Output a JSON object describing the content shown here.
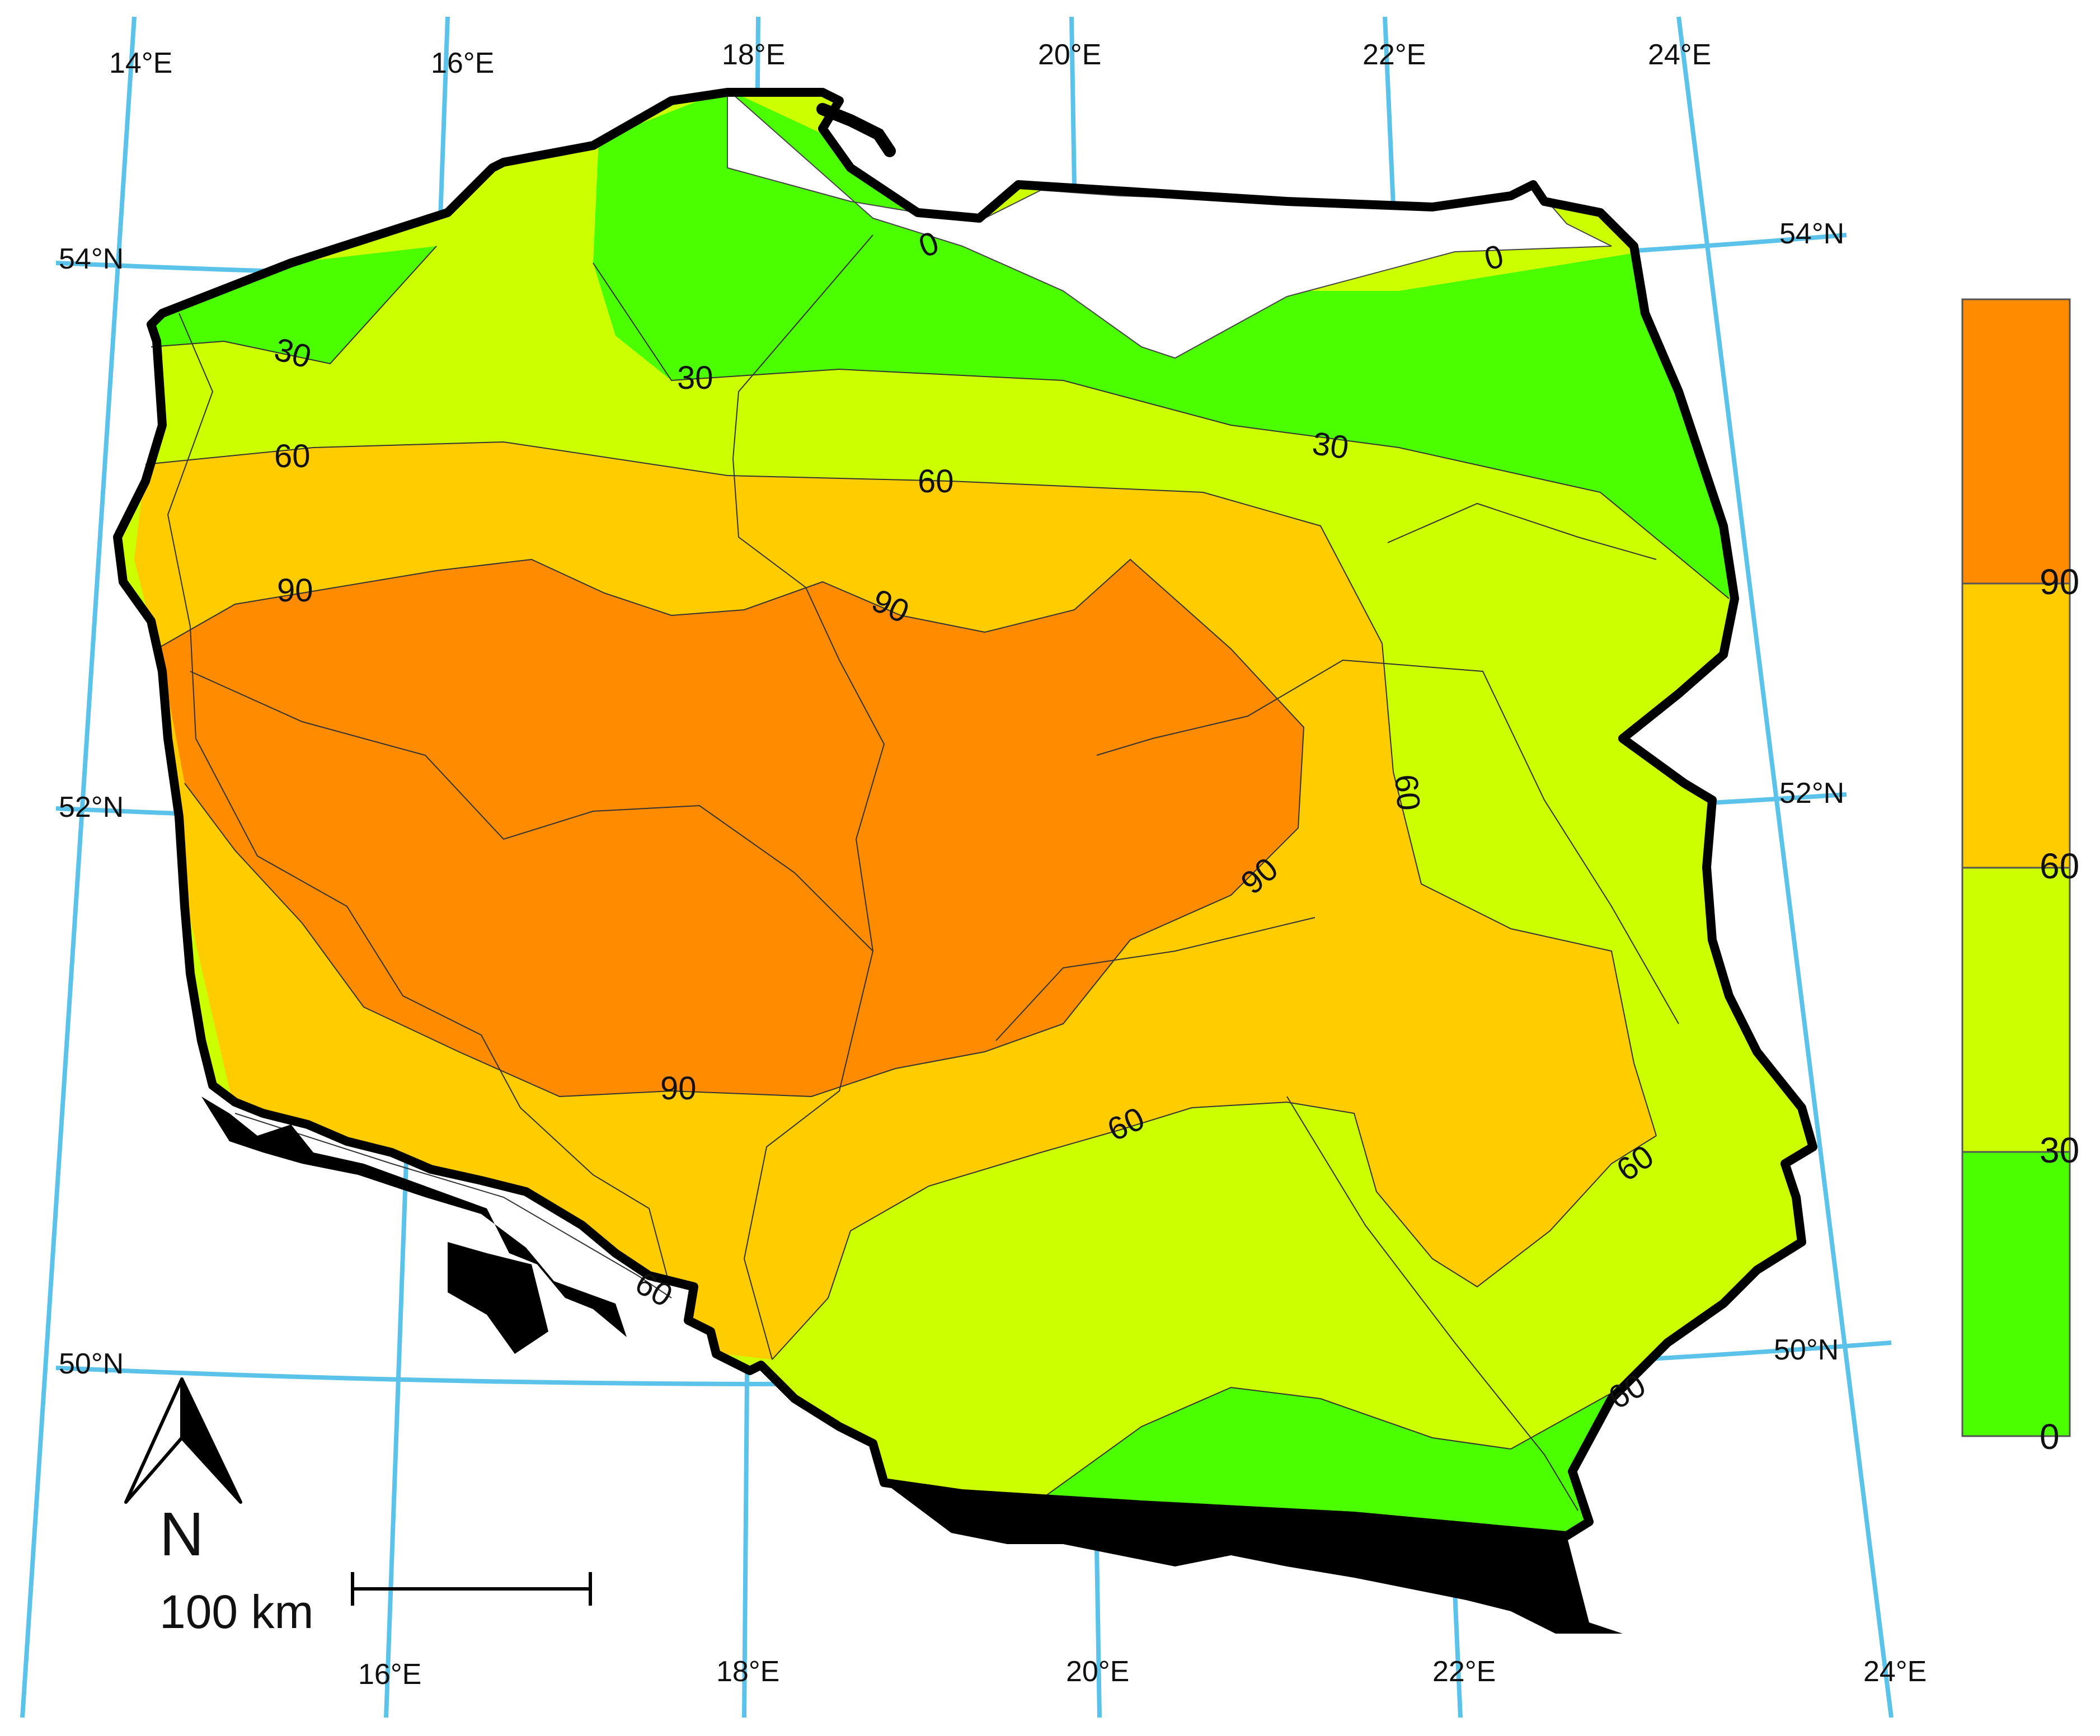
{
  "graticule": {
    "meridians_top": [
      "14°E",
      "16°E",
      "18°E",
      "20°E",
      "22°E",
      "24°E"
    ],
    "meridians_bottom": [
      "16°E",
      "18°E",
      "20°E",
      "22°E",
      "24°E"
    ],
    "parallels_left": [
      "54°N",
      "52°N",
      "50°N"
    ],
    "parallels_right": [
      "54°N",
      "52°N",
      "50°N"
    ],
    "color": "#5bc2ea"
  },
  "contour_labels": [
    "0",
    "0",
    "30",
    "30",
    "30",
    "60",
    "60",
    "60",
    "90",
    "90",
    "90",
    "90",
    "60",
    "60",
    "60",
    "60"
  ],
  "legend": {
    "classes": [
      {
        "range": "0–30",
        "color": "#4cff00"
      },
      {
        "range": "30–60",
        "color": "#ccff00"
      },
      {
        "range": "60–90",
        "color": "#ffcc00"
      },
      {
        "range": "90+",
        "color": "#ff8c00"
      }
    ],
    "ticks": [
      "90",
      "60",
      "30",
      "0"
    ]
  },
  "north_arrow": {
    "label": "N",
    "icon": "north-arrow-icon"
  },
  "scale_bar": {
    "label": "100 km"
  },
  "colors": {
    "border": "#000000",
    "mountains": "#000000",
    "rivers": "#333333"
  }
}
